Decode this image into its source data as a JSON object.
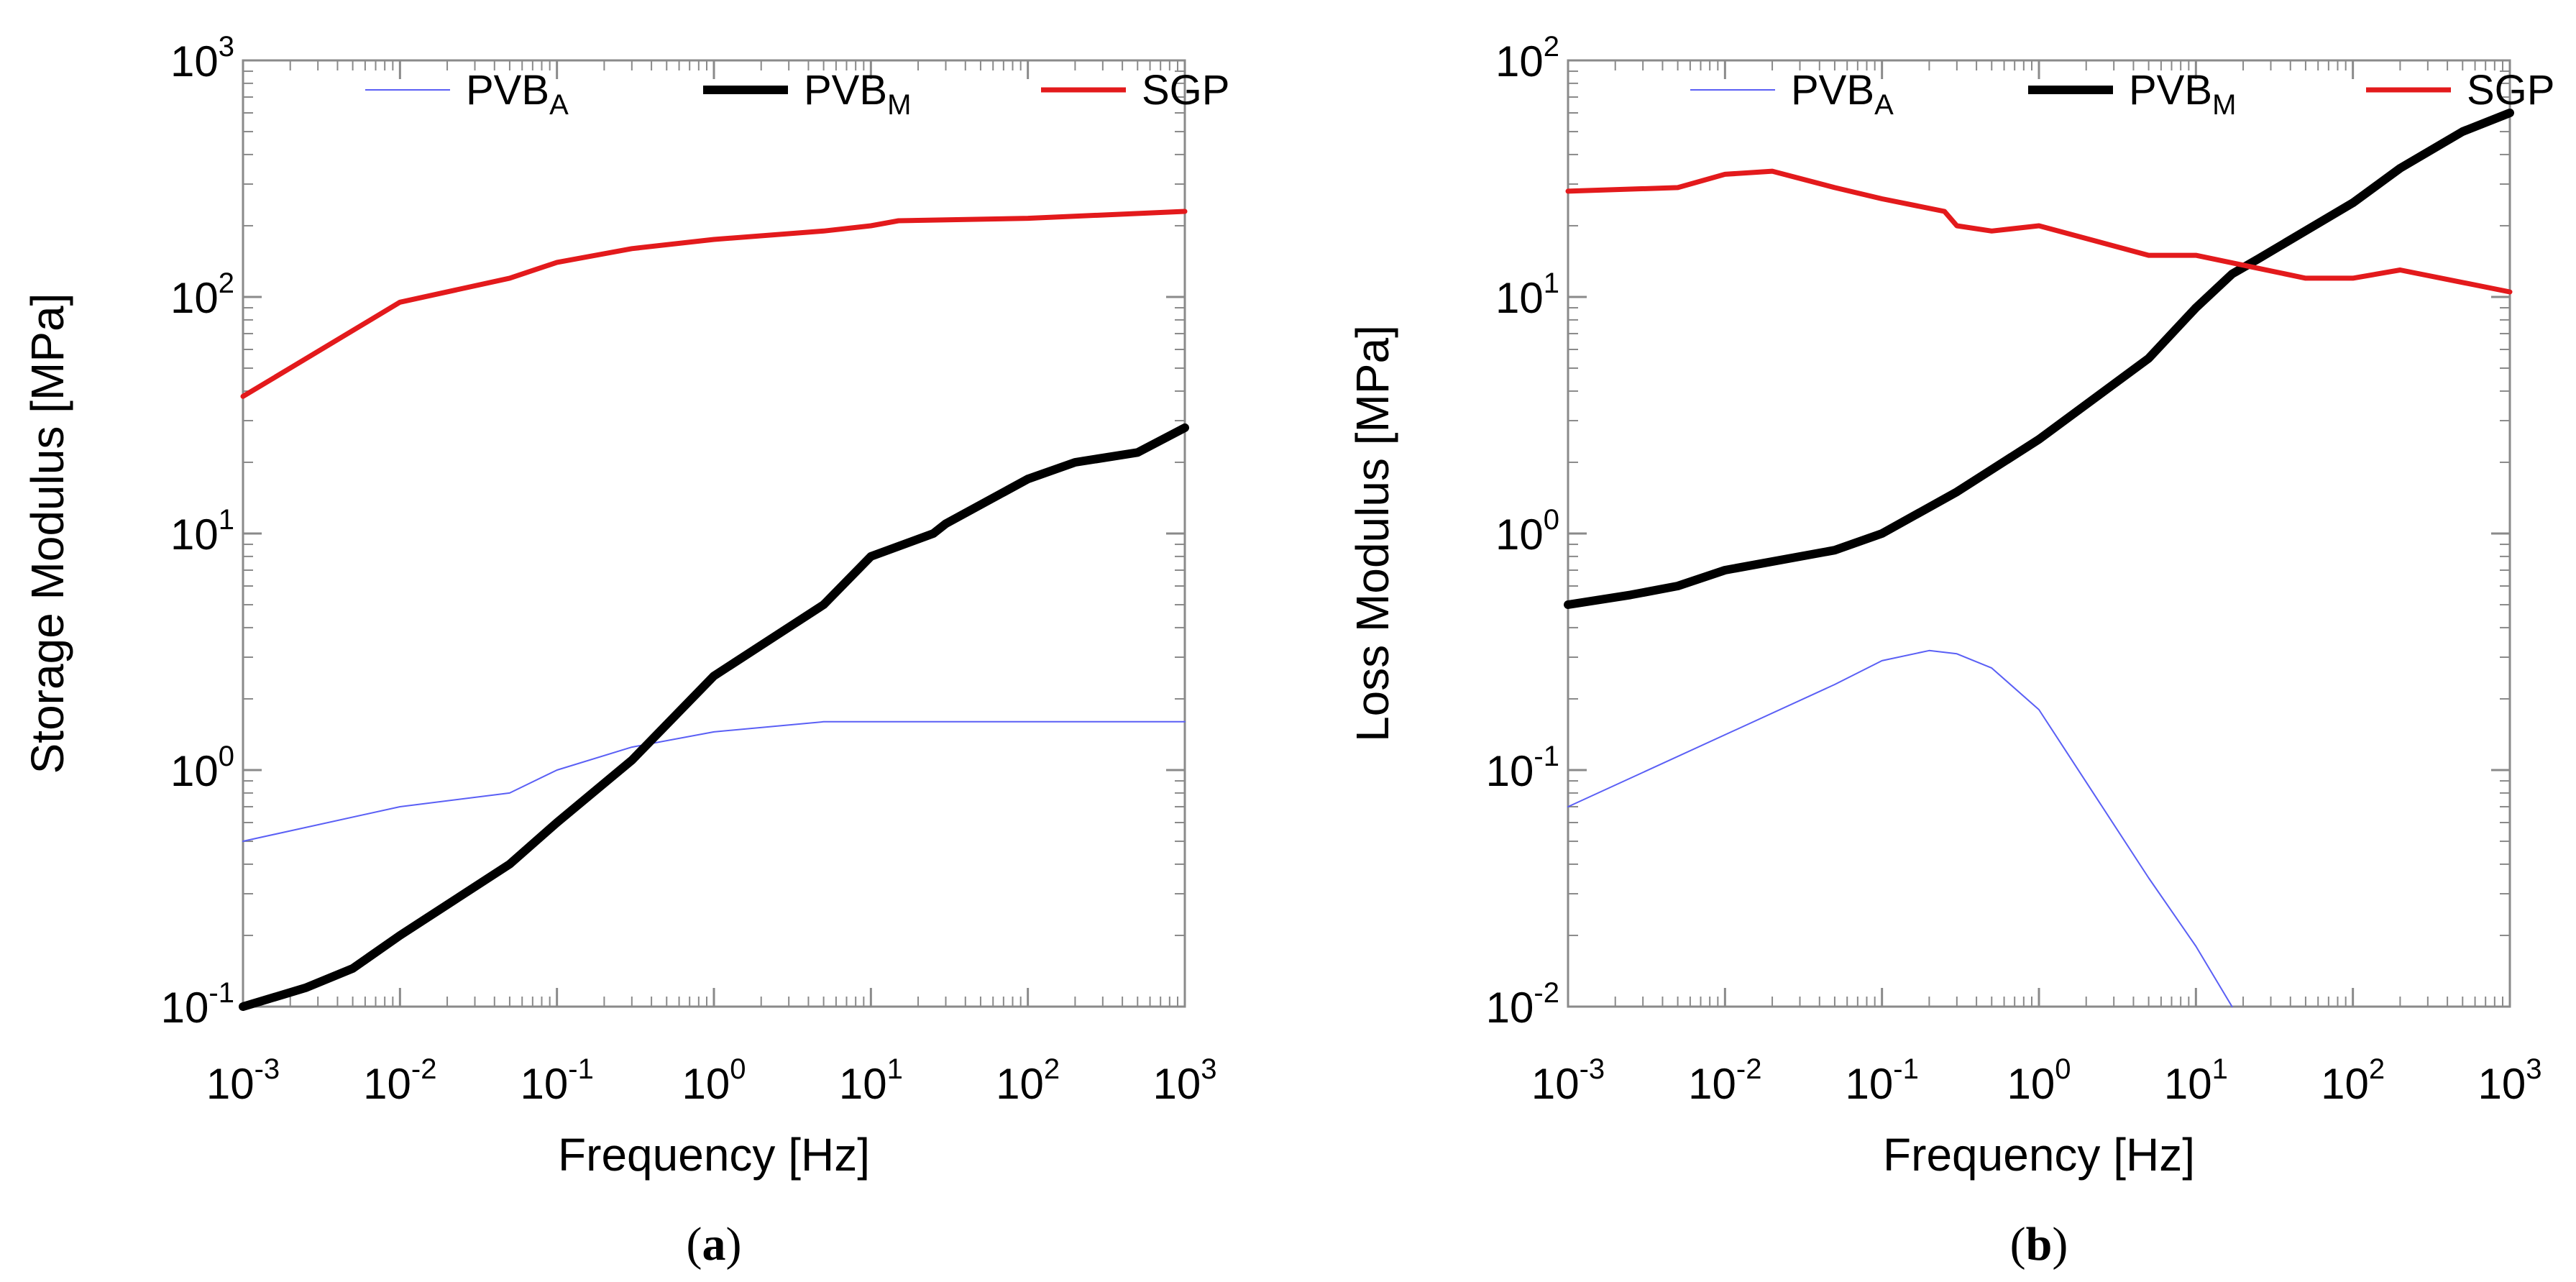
{
  "chart_data": [
    {
      "type": "line",
      "panel_label": "a",
      "caption_open": "(",
      "caption_close": ")",
      "xlabel": "Frequency [Hz]",
      "ylabel": "Storage Modulus [MPa]",
      "xscale": "log",
      "yscale": "log",
      "xlim": [
        0.001,
        1000
      ],
      "ylim": [
        0.1,
        1000
      ],
      "x_ticks": [
        {
          "base": "10",
          "exp": "-3"
        },
        {
          "base": "10",
          "exp": "-2"
        },
        {
          "base": "10",
          "exp": "-1"
        },
        {
          "base": "10",
          "exp": "0"
        },
        {
          "base": "10",
          "exp": "1"
        },
        {
          "base": "10",
          "exp": "2"
        },
        {
          "base": "10",
          "exp": "3"
        }
      ],
      "y_ticks": [
        {
          "base": "10",
          "exp": "-1"
        },
        {
          "base": "10",
          "exp": "0"
        },
        {
          "base": "10",
          "exp": "1"
        },
        {
          "base": "10",
          "exp": "2"
        },
        {
          "base": "10",
          "exp": "3"
        }
      ],
      "legend": {
        "placement": "top-center"
      },
      "series": [
        {
          "name": "PVB",
          "sub": "A",
          "color": "#5a5ff5",
          "weight": "thin",
          "x": [
            0.001,
            0.01,
            0.05,
            0.1,
            0.3,
            1,
            5,
            1000
          ],
          "y": [
            0.5,
            0.7,
            0.8,
            1.0,
            1.25,
            1.45,
            1.6,
            1.6
          ]
        },
        {
          "name": "PVB",
          "sub": "M",
          "color": "#000000",
          "weight": "thick",
          "x": [
            0.001,
            0.0025,
            0.005,
            0.01,
            0.05,
            0.1,
            0.3,
            1,
            5,
            10,
            25,
            30,
            100,
            200,
            500,
            1000
          ],
          "y": [
            0.1,
            0.12,
            0.145,
            0.2,
            0.4,
            0.6,
            1.1,
            2.5,
            5,
            8,
            10,
            11,
            17,
            20,
            22,
            28
          ]
        },
        {
          "name": "SGP",
          "sub": "",
          "color": "#e31a1c",
          "weight": "medium",
          "x": [
            0.001,
            0.01,
            0.05,
            0.1,
            0.3,
            1,
            5,
            10,
            15,
            100,
            1000
          ],
          "y": [
            38,
            95,
            120,
            140,
            160,
            175,
            190,
            200,
            210,
            215,
            230
          ]
        }
      ]
    },
    {
      "type": "line",
      "panel_label": "b",
      "caption_open": "(",
      "caption_close": ")",
      "xlabel": "Frequency [Hz]",
      "ylabel": "Loss Modulus [MPa]",
      "xscale": "log",
      "yscale": "log",
      "xlim": [
        0.001,
        1000
      ],
      "ylim": [
        0.01,
        100
      ],
      "x_ticks": [
        {
          "base": "10",
          "exp": "-3"
        },
        {
          "base": "10",
          "exp": "-2"
        },
        {
          "base": "10",
          "exp": "-1"
        },
        {
          "base": "10",
          "exp": "0"
        },
        {
          "base": "10",
          "exp": "1"
        },
        {
          "base": "10",
          "exp": "2"
        },
        {
          "base": "10",
          "exp": "3"
        }
      ],
      "y_ticks": [
        {
          "base": "10",
          "exp": "-2"
        },
        {
          "base": "10",
          "exp": "-1"
        },
        {
          "base": "10",
          "exp": "0"
        },
        {
          "base": "10",
          "exp": "1"
        },
        {
          "base": "10",
          "exp": "2"
        }
      ],
      "legend": {
        "placement": "top-center"
      },
      "series": [
        {
          "name": "PVB",
          "sub": "A",
          "color": "#5a5ff5",
          "weight": "thin",
          "x": [
            0.001,
            0.05,
            0.1,
            0.2,
            0.3,
            0.5,
            1,
            5,
            10,
            17
          ],
          "y": [
            0.07,
            0.23,
            0.29,
            0.32,
            0.31,
            0.27,
            0.18,
            0.035,
            0.018,
            0.01
          ]
        },
        {
          "name": "PVB",
          "sub": "M",
          "color": "#000000",
          "weight": "thick",
          "x": [
            0.001,
            0.0025,
            0.005,
            0.01,
            0.05,
            0.1,
            0.3,
            1,
            5,
            10,
            17,
            25,
            100,
            200,
            500,
            1000
          ],
          "y": [
            0.5,
            0.55,
            0.6,
            0.7,
            0.85,
            1.0,
            1.5,
            2.5,
            5.5,
            9,
            12.5,
            14.5,
            25,
            35,
            50,
            60
          ]
        },
        {
          "name": "SGP",
          "sub": "",
          "color": "#e31a1c",
          "weight": "medium",
          "x": [
            0.001,
            0.005,
            0.01,
            0.02,
            0.05,
            0.1,
            0.25,
            0.3,
            0.5,
            1,
            5,
            10,
            50,
            100,
            200,
            1000
          ],
          "y": [
            28,
            29,
            33,
            34,
            29,
            26,
            23,
            20,
            19,
            20,
            15,
            15,
            12,
            12,
            13,
            10.5
          ]
        }
      ]
    }
  ]
}
